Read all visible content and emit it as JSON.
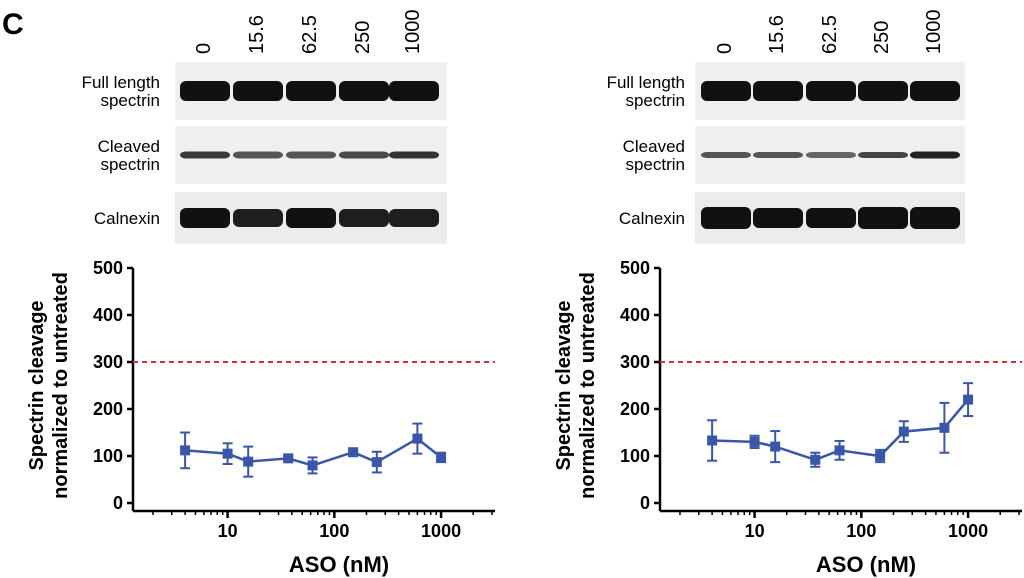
{
  "panel_label": "C",
  "blot": {
    "concentrations": [
      "0",
      "15.6",
      "62.5",
      "250",
      "1000"
    ],
    "rows": [
      "Full length spectrin",
      "Cleaved spectrin",
      "Calnexin"
    ],
    "row_labels": {
      "full_length": [
        "Full length",
        "spectrin"
      ],
      "cleaved": [
        "Cleaved",
        "spectrin"
      ],
      "calnexin": [
        "Calnexin"
      ]
    }
  },
  "chart_data": [
    {
      "type": "line",
      "xlabel": "ASO (nM)",
      "ylabel": [
        "Spectrin cleavage",
        "normalized to untreated"
      ],
      "xscale": "log",
      "xlim": [
        1.3,
        3200
      ],
      "ylim": [
        0,
        500
      ],
      "yticks": [
        0,
        100,
        200,
        300,
        400,
        500
      ],
      "xticks": [
        10,
        100,
        1000
      ],
      "reference_line": {
        "y": 300,
        "style": "dashed",
        "color": "#cc3333"
      },
      "series": [
        {
          "color": "#3a56a8",
          "x": [
            4,
            10,
            15.6,
            37,
            62.5,
            150,
            250,
            600,
            1000
          ],
          "y": [
            112,
            105,
            88,
            95,
            80,
            108,
            87,
            137,
            97
          ],
          "err": [
            38,
            22,
            32,
            6,
            17,
            8,
            22,
            32,
            10
          ]
        }
      ]
    },
    {
      "type": "line",
      "xlabel": "ASO (nM)",
      "ylabel": [
        "Spectrin cleavage",
        "normalized to untreated"
      ],
      "xscale": "log",
      "xlim": [
        1.3,
        3200
      ],
      "ylim": [
        0,
        500
      ],
      "yticks": [
        0,
        100,
        200,
        300,
        400,
        500
      ],
      "xticks": [
        10,
        100,
        1000
      ],
      "reference_line": {
        "y": 300,
        "style": "dashed",
        "color": "#cc3333"
      },
      "series": [
        {
          "color": "#3a56a8",
          "x": [
            4,
            10,
            15.6,
            37,
            62.5,
            150,
            250,
            600,
            1000
          ],
          "y": [
            133,
            130,
            120,
            92,
            112,
            100,
            152,
            160,
            220
          ],
          "err": [
            43,
            13,
            33,
            15,
            20,
            13,
            22,
            53,
            35
          ]
        }
      ]
    }
  ]
}
